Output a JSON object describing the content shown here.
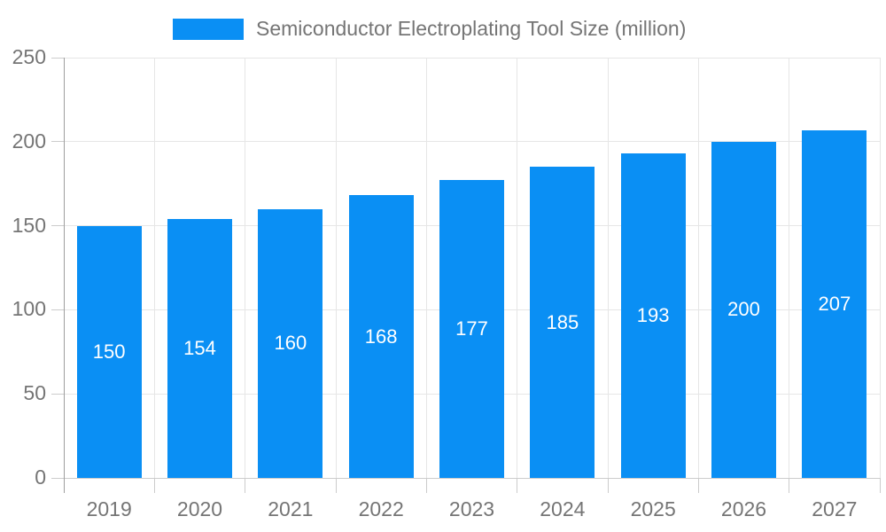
{
  "chart_data": {
    "type": "bar",
    "title": "Semiconductor Electroplating Tool Size (million)",
    "categories": [
      "2019",
      "2020",
      "2021",
      "2022",
      "2023",
      "2024",
      "2025",
      "2026",
      "2027"
    ],
    "values": [
      150,
      154,
      160,
      168,
      177,
      185,
      193,
      200,
      207
    ],
    "xlabel": "",
    "ylabel": "",
    "ylim": [
      0,
      250
    ],
    "yticks": [
      0,
      50,
      100,
      150,
      200,
      250
    ],
    "grid": "on",
    "legend_position": "top",
    "bar_color": "#0A8FF4",
    "bar_label_color": "#FFFFFF",
    "text_color": "#757575",
    "grid_color": "#E6E6E6",
    "zero_line_color": "#CCCCCC",
    "axis_color": "#9E9E9E",
    "tick_color": "#CCCCCC",
    "background_color": "#FFFFFF"
  }
}
